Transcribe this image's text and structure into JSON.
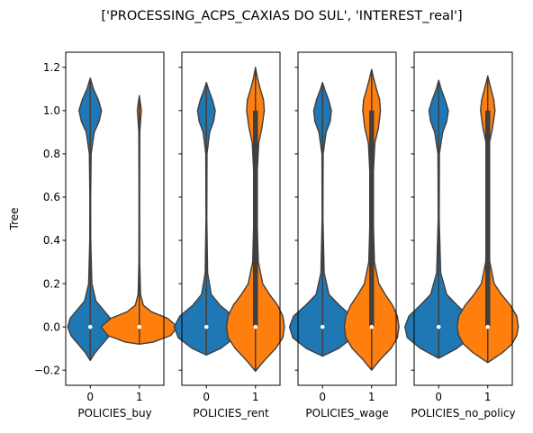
{
  "suptitle": "['PROCESSING_ACPS_CAXIAS DO SUL', 'INTEREST_real']",
  "chart_data": [
    {
      "type": "violin",
      "xlabel": "POLICIES_buy",
      "ylabel": "Tree",
      "ylim": [
        -0.27,
        1.27
      ],
      "yticks": [
        -0.2,
        0.0,
        0.2,
        0.4,
        0.6,
        0.8,
        1.0,
        1.2
      ],
      "ytick_labels": [
        "−0.2",
        "0.0",
        "0.2",
        "0.4",
        "0.6",
        "0.8",
        "1.0",
        "1.2"
      ],
      "categories": [
        "0",
        "1"
      ],
      "violins": [
        {
          "category": "0",
          "color": "#1f77b4",
          "min": -0.155,
          "max": 1.15,
          "median": 0.0,
          "q1": 0.0,
          "q3": 0.0,
          "profile": [
            [
              -0.155,
              0.0
            ],
            [
              -0.12,
              0.12
            ],
            [
              -0.08,
              0.3
            ],
            [
              -0.04,
              0.48
            ],
            [
              0.0,
              0.56
            ],
            [
              0.04,
              0.5
            ],
            [
              0.08,
              0.32
            ],
            [
              0.12,
              0.14
            ],
            [
              0.2,
              0.04
            ],
            [
              0.4,
              0.012
            ],
            [
              0.6,
              0.01
            ],
            [
              0.8,
              0.022
            ],
            [
              0.9,
              0.1
            ],
            [
              0.95,
              0.22
            ],
            [
              1.0,
              0.28
            ],
            [
              1.05,
              0.2
            ],
            [
              1.1,
              0.08
            ],
            [
              1.15,
              0.0
            ]
          ]
        },
        {
          "category": "1",
          "color": "#ff7f0e",
          "min": -0.08,
          "max": 1.07,
          "median": 0.0,
          "q1": 0.0,
          "q3": 0.0,
          "profile": [
            [
              -0.08,
              0.0
            ],
            [
              -0.07,
              0.35
            ],
            [
              -0.04,
              0.78
            ],
            [
              0.0,
              0.95
            ],
            [
              0.04,
              0.7
            ],
            [
              0.07,
              0.3
            ],
            [
              0.1,
              0.1
            ],
            [
              0.15,
              0.03
            ],
            [
              0.3,
              0.01
            ],
            [
              0.6,
              0.008
            ],
            [
              0.9,
              0.012
            ],
            [
              0.98,
              0.04
            ],
            [
              1.0,
              0.05
            ],
            [
              1.03,
              0.03
            ],
            [
              1.07,
              0.0
            ]
          ]
        }
      ]
    },
    {
      "type": "violin",
      "xlabel": "POLICIES_rent",
      "ylabel": "",
      "ylim": [
        -0.27,
        1.27
      ],
      "categories": [
        "0",
        "1"
      ],
      "violins": [
        {
          "category": "0",
          "color": "#1f77b4",
          "min": -0.13,
          "max": 1.13,
          "median": 0.0,
          "q1": 0.0,
          "q3": 0.0,
          "profile": [
            [
              -0.13,
              0.0
            ],
            [
              -0.1,
              0.35
            ],
            [
              -0.05,
              0.7
            ],
            [
              0.0,
              0.8
            ],
            [
              0.05,
              0.66
            ],
            [
              0.1,
              0.34
            ],
            [
              0.15,
              0.12
            ],
            [
              0.25,
              0.03
            ],
            [
              0.5,
              0.01
            ],
            [
              0.8,
              0.015
            ],
            [
              0.9,
              0.08
            ],
            [
              0.95,
              0.18
            ],
            [
              1.0,
              0.22
            ],
            [
              1.05,
              0.15
            ],
            [
              1.1,
              0.05
            ],
            [
              1.13,
              0.0
            ]
          ]
        },
        {
          "category": "1",
          "color": "#ff7f0e",
          "min": -0.205,
          "max": 1.2,
          "median": 0.0,
          "q1": 0.0,
          "q3": 1.0,
          "profile": [
            [
              -0.205,
              0.0
            ],
            [
              -0.16,
              0.2
            ],
            [
              -0.1,
              0.5
            ],
            [
              -0.05,
              0.68
            ],
            [
              0.0,
              0.72
            ],
            [
              0.05,
              0.68
            ],
            [
              0.1,
              0.55
            ],
            [
              0.15,
              0.35
            ],
            [
              0.2,
              0.18
            ],
            [
              0.3,
              0.07
            ],
            [
              0.5,
              0.04
            ],
            [
              0.7,
              0.04
            ],
            [
              0.85,
              0.08
            ],
            [
              0.92,
              0.16
            ],
            [
              1.0,
              0.22
            ],
            [
              1.05,
              0.2
            ],
            [
              1.1,
              0.12
            ],
            [
              1.15,
              0.05
            ],
            [
              1.2,
              0.0
            ]
          ]
        }
      ]
    },
    {
      "type": "violin",
      "xlabel": "POLICIES_wage",
      "ylabel": "",
      "ylim": [
        -0.27,
        1.27
      ],
      "categories": [
        "0",
        "1"
      ],
      "violins": [
        {
          "category": "0",
          "color": "#1f77b4",
          "min": -0.135,
          "max": 1.13,
          "median": 0.0,
          "q1": 0.0,
          "q3": 0.0,
          "profile": [
            [
              -0.135,
              0.0
            ],
            [
              -0.1,
              0.4
            ],
            [
              -0.05,
              0.74
            ],
            [
              0.0,
              0.82
            ],
            [
              0.05,
              0.72
            ],
            [
              0.1,
              0.42
            ],
            [
              0.15,
              0.16
            ],
            [
              0.25,
              0.04
            ],
            [
              0.5,
              0.01
            ],
            [
              0.8,
              0.015
            ],
            [
              0.9,
              0.09
            ],
            [
              0.95,
              0.19
            ],
            [
              1.0,
              0.22
            ],
            [
              1.05,
              0.15
            ],
            [
              1.1,
              0.05
            ],
            [
              1.13,
              0.0
            ]
          ]
        },
        {
          "category": "1",
          "color": "#ff7f0e",
          "min": -0.2,
          "max": 1.19,
          "median": 0.0,
          "q1": 0.0,
          "q3": 1.0,
          "profile": [
            [
              -0.2,
              0.0
            ],
            [
              -0.15,
              0.22
            ],
            [
              -0.1,
              0.48
            ],
            [
              -0.05,
              0.64
            ],
            [
              0.0,
              0.68
            ],
            [
              0.05,
              0.64
            ],
            [
              0.1,
              0.52
            ],
            [
              0.15,
              0.34
            ],
            [
              0.2,
              0.18
            ],
            [
              0.3,
              0.07
            ],
            [
              0.5,
              0.04
            ],
            [
              0.7,
              0.04
            ],
            [
              0.85,
              0.08
            ],
            [
              0.92,
              0.17
            ],
            [
              1.0,
              0.22
            ],
            [
              1.05,
              0.2
            ],
            [
              1.1,
              0.12
            ],
            [
              1.15,
              0.05
            ],
            [
              1.19,
              0.0
            ]
          ]
        }
      ]
    },
    {
      "type": "violin",
      "xlabel": "POLICIES_no_policy",
      "ylabel": "",
      "ylim": [
        -0.27,
        1.27
      ],
      "categories": [
        "0",
        "1"
      ],
      "violins": [
        {
          "category": "0",
          "color": "#1f77b4",
          "min": -0.145,
          "max": 1.14,
          "median": 0.0,
          "q1": 0.0,
          "q3": 0.0,
          "profile": [
            [
              -0.145,
              0.0
            ],
            [
              -0.1,
              0.45
            ],
            [
              -0.05,
              0.78
            ],
            [
              0.0,
              0.84
            ],
            [
              0.05,
              0.74
            ],
            [
              0.1,
              0.46
            ],
            [
              0.15,
              0.2
            ],
            [
              0.25,
              0.05
            ],
            [
              0.5,
              0.012
            ],
            [
              0.8,
              0.018
            ],
            [
              0.9,
              0.1
            ],
            [
              0.95,
              0.2
            ],
            [
              1.0,
              0.24
            ],
            [
              1.05,
              0.16
            ],
            [
              1.1,
              0.06
            ],
            [
              1.14,
              0.0
            ]
          ]
        },
        {
          "category": "1",
          "color": "#ff7f0e",
          "min": -0.165,
          "max": 1.16,
          "median": 0.0,
          "q1": 0.0,
          "q3": 1.0,
          "profile": [
            [
              -0.165,
              0.0
            ],
            [
              -0.12,
              0.36
            ],
            [
              -0.08,
              0.6
            ],
            [
              -0.04,
              0.72
            ],
            [
              0.0,
              0.76
            ],
            [
              0.05,
              0.72
            ],
            [
              0.1,
              0.56
            ],
            [
              0.15,
              0.34
            ],
            [
              0.2,
              0.16
            ],
            [
              0.3,
              0.05
            ],
            [
              0.5,
              0.015
            ],
            [
              0.7,
              0.012
            ],
            [
              0.85,
              0.04
            ],
            [
              0.92,
              0.12
            ],
            [
              1.0,
              0.18
            ],
            [
              1.05,
              0.15
            ],
            [
              1.1,
              0.08
            ],
            [
              1.16,
              0.0
            ]
          ]
        }
      ]
    }
  ]
}
